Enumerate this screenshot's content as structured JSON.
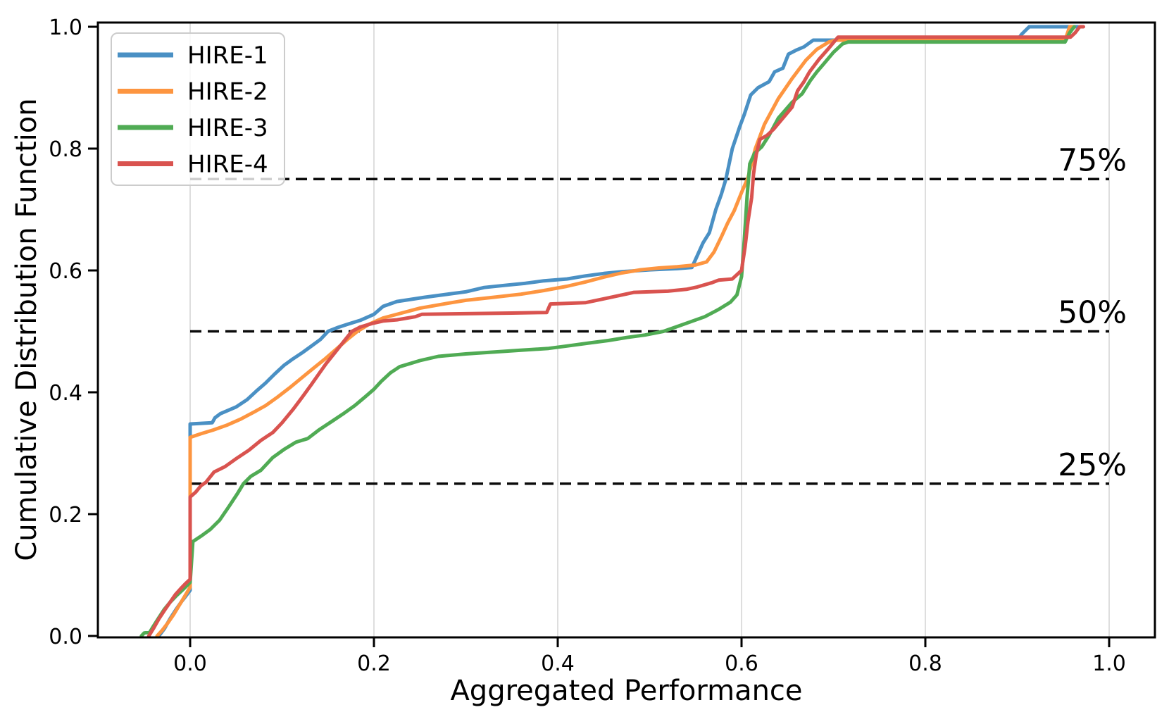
{
  "figure": {
    "xlabel": "Aggregated Performance",
    "ylabel": "Cumulative Distribution Function"
  },
  "chart_data": {
    "type": "line",
    "subtype": "empirical-cdf",
    "title": "",
    "xlabel": "Aggregated Performance",
    "ylabel": "Cumulative Distribution Function",
    "xlim": [
      -0.1,
      1.05
    ],
    "ylim": [
      0,
      1.007
    ],
    "x_ticks": [
      0.0,
      0.2,
      0.4,
      0.6,
      0.8,
      1.0
    ],
    "x_tick_labels": [
      "0.0",
      "0.2",
      "0.4",
      "0.6",
      "0.8",
      "1.0"
    ],
    "y_ticks": [
      0.0,
      0.2,
      0.4,
      0.6,
      0.8,
      1.0
    ],
    "y_tick_labels": [
      "0.0",
      "0.2",
      "0.4",
      "0.6",
      "0.8",
      "1.0"
    ],
    "grid": "vertical-only",
    "grid_color": "#dedede",
    "legend_position": "upper-left",
    "axis_color": "#000000",
    "quantile_lines": [
      {
        "y": 0.75,
        "label": "75%"
      },
      {
        "y": 0.5,
        "label": "50%"
      },
      {
        "y": 0.25,
        "label": "25%"
      }
    ],
    "series": [
      {
        "name": "HIRE-1",
        "color": "#4a90c4",
        "points": [
          [
            -0.034,
            0
          ],
          [
            -0.028,
            0.012
          ],
          [
            -0.022,
            0.028
          ],
          [
            -0.016,
            0.042
          ],
          [
            -0.01,
            0.055
          ],
          [
            -0.005,
            0.065
          ],
          [
            0,
            0.075
          ],
          [
            0,
            0.348
          ],
          [
            0.024,
            0.35
          ],
          [
            0.027,
            0.358
          ],
          [
            0.033,
            0.365
          ],
          [
            0.05,
            0.376
          ],
          [
            0.062,
            0.388
          ],
          [
            0.072,
            0.402
          ],
          [
            0.082,
            0.415
          ],
          [
            0.092,
            0.43
          ],
          [
            0.102,
            0.444
          ],
          [
            0.112,
            0.455
          ],
          [
            0.122,
            0.465
          ],
          [
            0.132,
            0.476
          ],
          [
            0.142,
            0.487
          ],
          [
            0.15,
            0.5
          ],
          [
            0.16,
            0.506
          ],
          [
            0.172,
            0.512
          ],
          [
            0.185,
            0.518
          ],
          [
            0.2,
            0.528
          ],
          [
            0.21,
            0.541
          ],
          [
            0.225,
            0.549
          ],
          [
            0.255,
            0.556
          ],
          [
            0.285,
            0.562
          ],
          [
            0.3,
            0.565
          ],
          [
            0.32,
            0.572
          ],
          [
            0.345,
            0.576
          ],
          [
            0.365,
            0.579
          ],
          [
            0.385,
            0.583
          ],
          [
            0.41,
            0.586
          ],
          [
            0.43,
            0.591
          ],
          [
            0.45,
            0.595
          ],
          [
            0.47,
            0.598
          ],
          [
            0.5,
            0.601
          ],
          [
            0.53,
            0.603
          ],
          [
            0.546,
            0.605
          ],
          [
            0.552,
            0.625
          ],
          [
            0.558,
            0.645
          ],
          [
            0.565,
            0.662
          ],
          [
            0.572,
            0.7
          ],
          [
            0.578,
            0.725
          ],
          [
            0.583,
            0.75
          ],
          [
            0.59,
            0.8
          ],
          [
            0.598,
            0.836
          ],
          [
            0.603,
            0.856
          ],
          [
            0.61,
            0.888
          ],
          [
            0.618,
            0.9
          ],
          [
            0.63,
            0.91
          ],
          [
            0.636,
            0.926
          ],
          [
            0.645,
            0.932
          ],
          [
            0.651,
            0.955
          ],
          [
            0.66,
            0.962
          ],
          [
            0.668,
            0.967
          ],
          [
            0.678,
            0.978
          ],
          [
            0.9,
            0.978
          ],
          [
            0.905,
            0.988
          ],
          [
            0.913,
            1.0
          ],
          [
            0.966,
            1.0
          ]
        ]
      },
      {
        "name": "HIRE-2",
        "color": "#fd9540",
        "points": [
          [
            -0.036,
            0
          ],
          [
            -0.03,
            0.01
          ],
          [
            -0.024,
            0.022
          ],
          [
            -0.018,
            0.035
          ],
          [
            -0.012,
            0.05
          ],
          [
            -0.006,
            0.065
          ],
          [
            0,
            0.08
          ],
          [
            0,
            0.326
          ],
          [
            0.012,
            0.332
          ],
          [
            0.025,
            0.338
          ],
          [
            0.04,
            0.346
          ],
          [
            0.055,
            0.356
          ],
          [
            0.07,
            0.368
          ],
          [
            0.082,
            0.378
          ],
          [
            0.095,
            0.392
          ],
          [
            0.108,
            0.407
          ],
          [
            0.12,
            0.422
          ],
          [
            0.133,
            0.438
          ],
          [
            0.147,
            0.455
          ],
          [
            0.16,
            0.472
          ],
          [
            0.172,
            0.488
          ],
          [
            0.182,
            0.5
          ],
          [
            0.195,
            0.512
          ],
          [
            0.21,
            0.522
          ],
          [
            0.23,
            0.53
          ],
          [
            0.25,
            0.538
          ],
          [
            0.28,
            0.546
          ],
          [
            0.3,
            0.551
          ],
          [
            0.33,
            0.556
          ],
          [
            0.36,
            0.561
          ],
          [
            0.385,
            0.567
          ],
          [
            0.41,
            0.574
          ],
          [
            0.43,
            0.581
          ],
          [
            0.45,
            0.589
          ],
          [
            0.47,
            0.596
          ],
          [
            0.49,
            0.601
          ],
          [
            0.51,
            0.604
          ],
          [
            0.53,
            0.606
          ],
          [
            0.55,
            0.609
          ],
          [
            0.562,
            0.614
          ],
          [
            0.57,
            0.63
          ],
          [
            0.578,
            0.655
          ],
          [
            0.585,
            0.678
          ],
          [
            0.592,
            0.698
          ],
          [
            0.6,
            0.728
          ],
          [
            0.607,
            0.752
          ],
          [
            0.615,
            0.8
          ],
          [
            0.625,
            0.84
          ],
          [
            0.64,
            0.882
          ],
          [
            0.655,
            0.915
          ],
          [
            0.67,
            0.945
          ],
          [
            0.682,
            0.963
          ],
          [
            0.695,
            0.975
          ],
          [
            0.702,
            0.978
          ],
          [
            0.952,
            0.978
          ],
          [
            0.957,
            1.0
          ],
          [
            0.962,
            1.0
          ]
        ]
      },
      {
        "name": "HIRE-3",
        "color": "#50ab54",
        "points": [
          [
            -0.053,
            0
          ],
          [
            -0.05,
            0.005
          ],
          [
            -0.044,
            0.006
          ],
          [
            -0.04,
            0.016
          ],
          [
            -0.034,
            0.03
          ],
          [
            -0.028,
            0.044
          ],
          [
            -0.022,
            0.055
          ],
          [
            -0.015,
            0.066
          ],
          [
            -0.008,
            0.076
          ],
          [
            0,
            0.088
          ],
          [
            0.003,
            0.155
          ],
          [
            0.012,
            0.164
          ],
          [
            0.022,
            0.175
          ],
          [
            0.032,
            0.19
          ],
          [
            0.042,
            0.212
          ],
          [
            0.052,
            0.235
          ],
          [
            0.058,
            0.25
          ],
          [
            0.066,
            0.262
          ],
          [
            0.077,
            0.272
          ],
          [
            0.09,
            0.293
          ],
          [
            0.102,
            0.306
          ],
          [
            0.115,
            0.318
          ],
          [
            0.128,
            0.324
          ],
          [
            0.14,
            0.338
          ],
          [
            0.154,
            0.352
          ],
          [
            0.166,
            0.364
          ],
          [
            0.179,
            0.378
          ],
          [
            0.19,
            0.392
          ],
          [
            0.2,
            0.405
          ],
          [
            0.208,
            0.418
          ],
          [
            0.218,
            0.432
          ],
          [
            0.228,
            0.442
          ],
          [
            0.25,
            0.452
          ],
          [
            0.27,
            0.459
          ],
          [
            0.3,
            0.463
          ],
          [
            0.33,
            0.466
          ],
          [
            0.36,
            0.469
          ],
          [
            0.39,
            0.472
          ],
          [
            0.41,
            0.476
          ],
          [
            0.435,
            0.481
          ],
          [
            0.455,
            0.485
          ],
          [
            0.475,
            0.49
          ],
          [
            0.495,
            0.494
          ],
          [
            0.515,
            0.5
          ],
          [
            0.53,
            0.508
          ],
          [
            0.545,
            0.516
          ],
          [
            0.56,
            0.524
          ],
          [
            0.575,
            0.536
          ],
          [
            0.588,
            0.548
          ],
          [
            0.595,
            0.56
          ],
          [
            0.6,
            0.59
          ],
          [
            0.603,
            0.65
          ],
          [
            0.606,
            0.72
          ],
          [
            0.609,
            0.775
          ],
          [
            0.614,
            0.792
          ],
          [
            0.622,
            0.803
          ],
          [
            0.63,
            0.822
          ],
          [
            0.64,
            0.85
          ],
          [
            0.655,
            0.876
          ],
          [
            0.666,
            0.89
          ],
          [
            0.675,
            0.912
          ],
          [
            0.682,
            0.926
          ],
          [
            0.69,
            0.94
          ],
          [
            0.7,
            0.958
          ],
          [
            0.71,
            0.972
          ],
          [
            0.716,
            0.975
          ],
          [
            0.952,
            0.975
          ],
          [
            0.957,
            0.99
          ],
          [
            0.962,
            1.0
          ]
        ]
      },
      {
        "name": "HIRE-4",
        "color": "#d9534f",
        "points": [
          [
            -0.045,
            0
          ],
          [
            -0.04,
            0.012
          ],
          [
            -0.034,
            0.028
          ],
          [
            -0.028,
            0.042
          ],
          [
            -0.022,
            0.055
          ],
          [
            -0.016,
            0.068
          ],
          [
            -0.01,
            0.078
          ],
          [
            -0.005,
            0.086
          ],
          [
            0,
            0.093
          ],
          [
            0,
            0.228
          ],
          [
            0.006,
            0.236
          ],
          [
            0.012,
            0.247
          ],
          [
            0.017,
            0.252
          ],
          [
            0.026,
            0.269
          ],
          [
            0.038,
            0.278
          ],
          [
            0.051,
            0.292
          ],
          [
            0.064,
            0.305
          ],
          [
            0.077,
            0.321
          ],
          [
            0.09,
            0.334
          ],
          [
            0.1,
            0.35
          ],
          [
            0.112,
            0.372
          ],
          [
            0.122,
            0.392
          ],
          [
            0.132,
            0.413
          ],
          [
            0.14,
            0.43
          ],
          [
            0.148,
            0.447
          ],
          [
            0.158,
            0.466
          ],
          [
            0.167,
            0.483
          ],
          [
            0.176,
            0.5
          ],
          [
            0.185,
            0.507
          ],
          [
            0.198,
            0.513
          ],
          [
            0.21,
            0.517
          ],
          [
            0.225,
            0.519
          ],
          [
            0.245,
            0.524
          ],
          [
            0.252,
            0.528
          ],
          [
            0.3,
            0.529
          ],
          [
            0.35,
            0.53
          ],
          [
            0.388,
            0.531
          ],
          [
            0.392,
            0.545
          ],
          [
            0.43,
            0.547
          ],
          [
            0.455,
            0.555
          ],
          [
            0.483,
            0.564
          ],
          [
            0.52,
            0.566
          ],
          [
            0.54,
            0.569
          ],
          [
            0.552,
            0.573
          ],
          [
            0.568,
            0.58
          ],
          [
            0.575,
            0.584
          ],
          [
            0.59,
            0.586
          ],
          [
            0.6,
            0.6
          ],
          [
            0.604,
            0.64
          ],
          [
            0.607,
            0.68
          ],
          [
            0.611,
            0.72
          ],
          [
            0.613,
            0.758
          ],
          [
            0.616,
            0.79
          ],
          [
            0.62,
            0.815
          ],
          [
            0.628,
            0.822
          ],
          [
            0.635,
            0.832
          ],
          [
            0.645,
            0.85
          ],
          [
            0.655,
            0.868
          ],
          [
            0.661,
            0.895
          ],
          [
            0.668,
            0.91
          ],
          [
            0.674,
            0.926
          ],
          [
            0.684,
            0.946
          ],
          [
            0.695,
            0.965
          ],
          [
            0.705,
            0.983
          ],
          [
            0.958,
            0.983
          ],
          [
            0.963,
            0.99
          ],
          [
            0.968,
            1.0
          ],
          [
            0.972,
            1.0
          ]
        ]
      }
    ]
  }
}
